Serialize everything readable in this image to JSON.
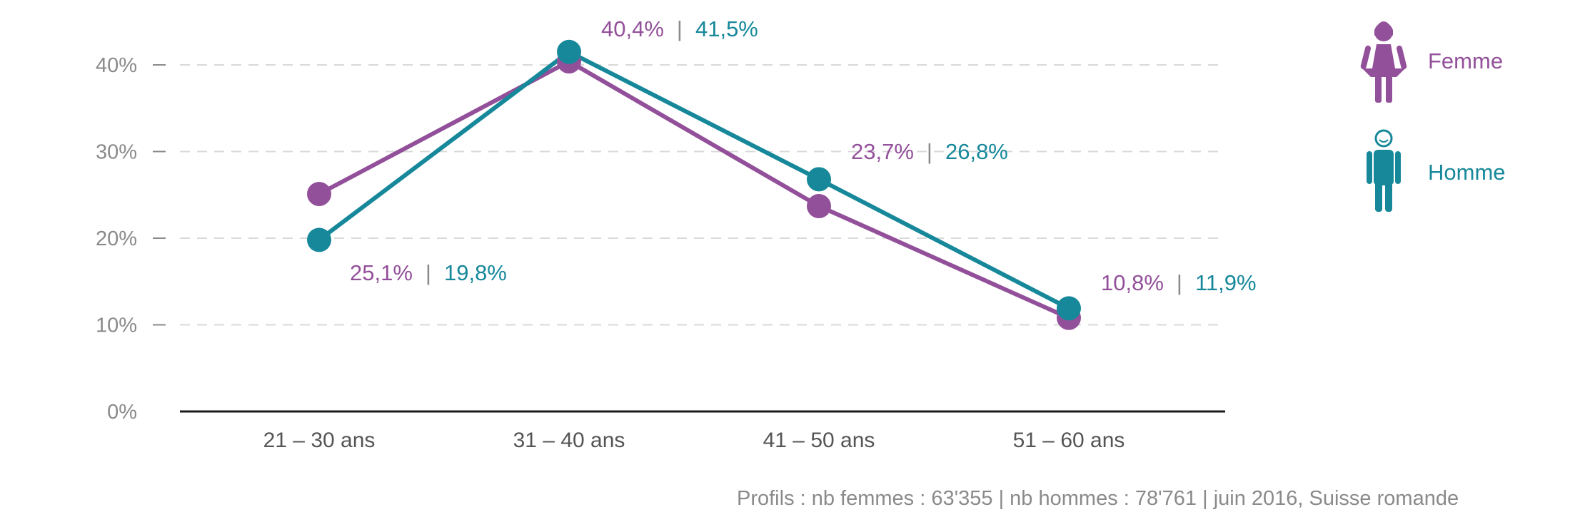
{
  "chart_data": {
    "type": "line",
    "categories": [
      "21 – 30 ans",
      "31 – 40 ans",
      "41 – 50 ans",
      "51 – 60 ans"
    ],
    "series": [
      {
        "name": "Femme",
        "values": [
          25.1,
          40.4,
          23.7,
          10.8
        ],
        "labels": [
          "25,1%",
          "40,4%",
          "23,7%",
          "10,8%"
        ],
        "color": "#93509a"
      },
      {
        "name": "Homme",
        "values": [
          19.8,
          41.5,
          26.8,
          11.9
        ],
        "labels": [
          "19,8%",
          "41,5%",
          "26,8%",
          "11,9%"
        ],
        "color": "#16889a"
      }
    ],
    "label_separator": "|",
    "y_ticks": [
      "0%",
      "10%",
      "20%",
      "30%",
      "40%"
    ],
    "ylim": [
      0,
      40
    ],
    "grid": true,
    "legend_position": "right",
    "source": "Profils : nb femmes : 63'355 | nb hommes : 78'761 | juin 2016, Suisse romande"
  },
  "icons": {
    "femme": "woman-icon",
    "homme": "man-icon"
  }
}
